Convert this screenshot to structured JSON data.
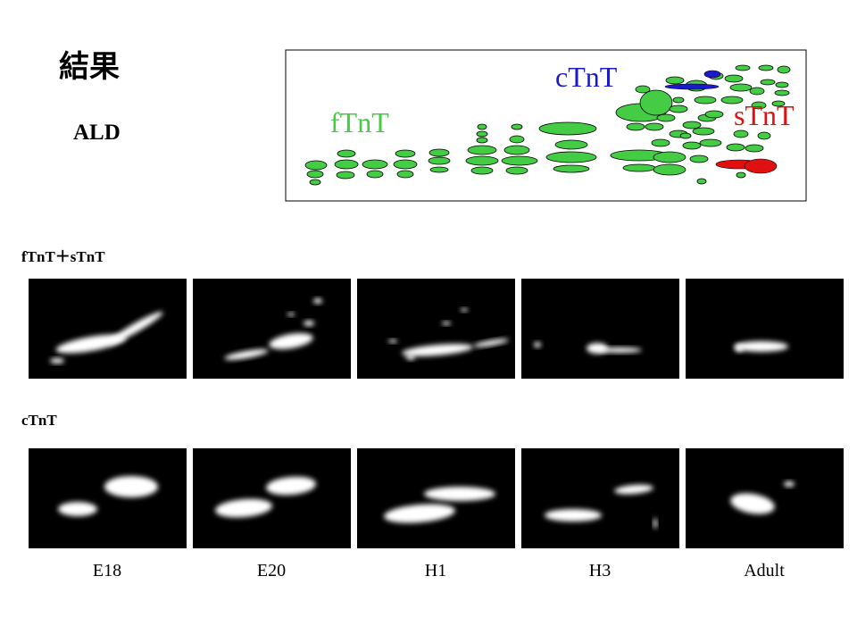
{
  "slide": {
    "title": "結果",
    "subtitle": "ALD"
  },
  "diagram": {
    "labels": [
      "fTnT",
      "cTnT",
      "sTnT"
    ]
  },
  "rows": [
    {
      "label": "fTnT＋sTnT"
    },
    {
      "label": "cTnT"
    }
  ],
  "columns": [
    "E18",
    "E20",
    "H1",
    "H3",
    "Adult"
  ]
}
